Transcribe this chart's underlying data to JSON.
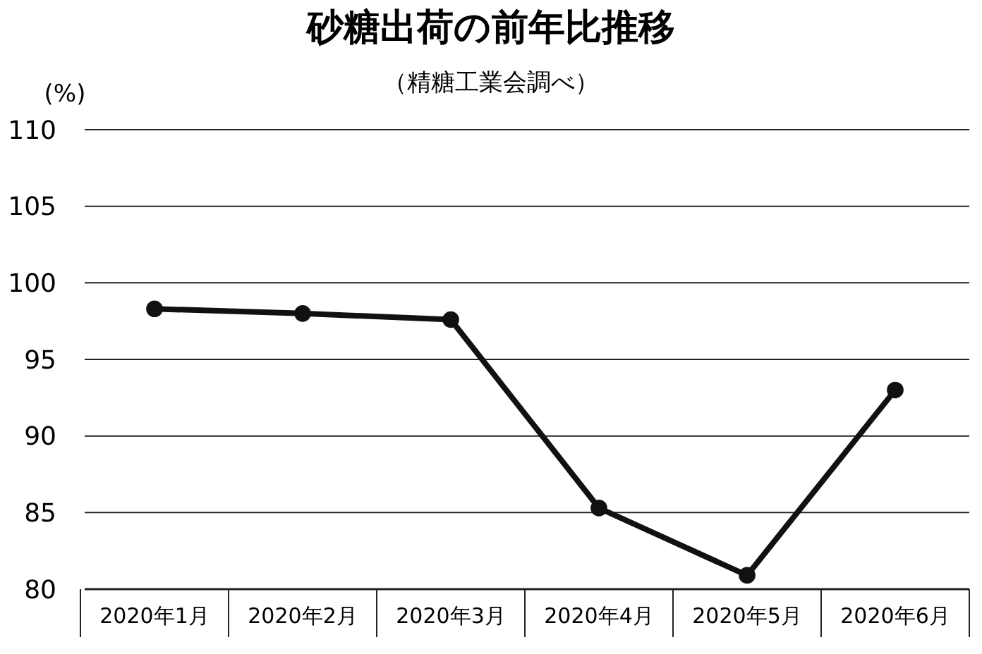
{
  "chart_data": {
    "type": "line",
    "title": "砂糖出荷の前年比推移",
    "subtitle": "（精糖工業会調べ）",
    "ylabel": "(%)",
    "categories": [
      "2020年1月",
      "2020年2月",
      "2020年3月",
      "2020年4月",
      "2020年5月",
      "2020年6月"
    ],
    "series": [
      {
        "color": "#111111",
        "values": [
          98.3,
          98.0,
          97.6,
          85.3,
          80.9,
          93.0
        ]
      }
    ],
    "ylim": [
      80,
      110
    ],
    "yticks": [
      80,
      85,
      90,
      95,
      100,
      105,
      110
    ],
    "grid": "y",
    "marker": "circle",
    "line_style": "solid"
  }
}
